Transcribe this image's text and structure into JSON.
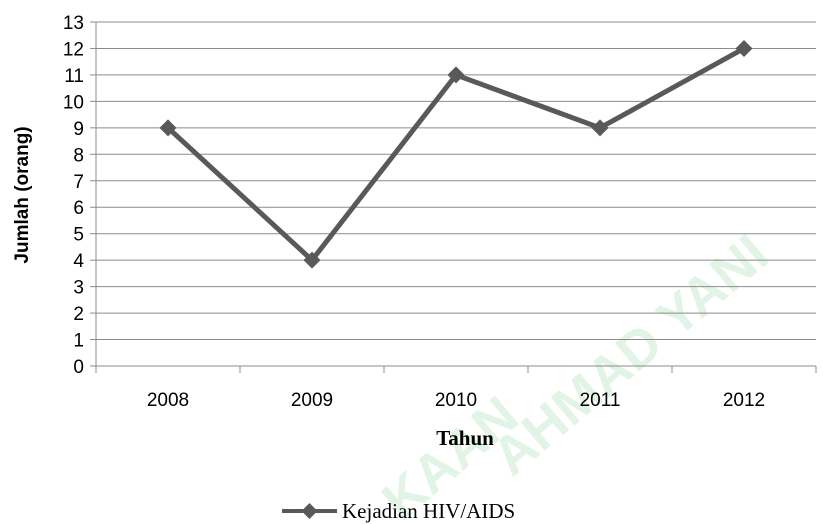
{
  "chart_data": {
    "type": "line",
    "title": "",
    "xlabel": "Tahun",
    "ylabel": "Jumlah (orang)",
    "categories": [
      "2008",
      "2009",
      "2010",
      "2011",
      "2012"
    ],
    "series": [
      {
        "name": "Kejadian HIV/AIDS",
        "values": [
          9,
          4,
          11,
          9,
          12
        ],
        "color": "#595959"
      }
    ],
    "ylim": [
      0,
      13
    ],
    "yticks": [
      "0",
      "1",
      "2",
      "3",
      "4",
      "5",
      "6",
      "7",
      "8",
      "9",
      "10",
      "11",
      "12",
      "13"
    ],
    "grid": true,
    "legend": "bottom",
    "marker": "diamond"
  },
  "watermark": [
    "KAAN",
    "AHMAD YANI"
  ]
}
